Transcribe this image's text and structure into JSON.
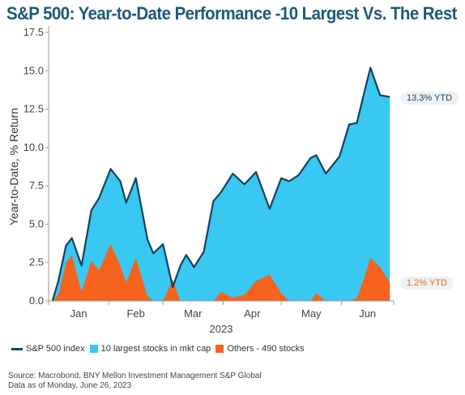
{
  "colors": {
    "title": "#1d5a7a",
    "index_line": "#14425e",
    "top10_fill": "#38c8f2",
    "others_fill": "#f5631e",
    "axis_text": "#444444"
  },
  "footer": {
    "source": "Source: Macrobond, BNY Mellon Investment Management S&P Global",
    "date_note": "Data as of Monday, June 26, 2023"
  },
  "annotations": {
    "index_ytd": "13.3% YTD",
    "others_ytd": "1.2% YTD"
  },
  "chart_data": {
    "type": "area",
    "title": "S&P 500: Year-to-Date Performance -10 Largest Vs. The Rest",
    "ylabel": "Year-to-Date, % Return",
    "xlabel": "2023",
    "ylim": [
      0,
      17.5
    ],
    "yticks": [
      "0.0",
      "2.5",
      "5.0",
      "7.5",
      "10.0",
      "12.5",
      "15.0",
      "17.5"
    ],
    "month_labels": [
      "Jan",
      "Feb",
      "Mar",
      "Apr",
      "May",
      "Jun"
    ],
    "grid": false,
    "legend_position": "bottom-left",
    "x": [
      "2023-01-03",
      "2023-01-06",
      "2023-01-10",
      "2023-01-13",
      "2023-01-18",
      "2023-01-23",
      "2023-01-27",
      "2023-02-02",
      "2023-02-07",
      "2023-02-10",
      "2023-02-15",
      "2023-02-21",
      "2023-02-24",
      "2023-03-01",
      "2023-03-06",
      "2023-03-10",
      "2023-03-13",
      "2023-03-17",
      "2023-03-22",
      "2023-03-27",
      "2023-03-31",
      "2023-04-06",
      "2023-04-12",
      "2023-04-18",
      "2023-04-25",
      "2023-05-01",
      "2023-05-05",
      "2023-05-10",
      "2023-05-16",
      "2023-05-19",
      "2023-05-24",
      "2023-05-31",
      "2023-06-05",
      "2023-06-09",
      "2023-06-13",
      "2023-06-16",
      "2023-06-21",
      "2023-06-26"
    ],
    "series": [
      {
        "name": "S&P 500 index",
        "values": [
          0.0,
          1.3,
          3.6,
          4.1,
          2.3,
          5.9,
          6.7,
          8.6,
          7.8,
          6.4,
          8.0,
          4.0,
          3.1,
          3.7,
          0.9,
          2.3,
          3.0,
          2.2,
          3.2,
          6.5,
          7.1,
          8.3,
          7.6,
          8.4,
          6.0,
          8.0,
          7.8,
          8.2,
          9.3,
          9.5,
          8.3,
          9.4,
          11.5,
          11.6,
          13.7,
          15.2,
          13.4,
          13.3
        ]
      },
      {
        "name": "10 largest stocks in mkt cap",
        "values": [
          0.0,
          1.3,
          3.6,
          4.1,
          2.3,
          5.9,
          6.7,
          8.6,
          7.8,
          6.4,
          8.0,
          4.0,
          3.1,
          3.7,
          0.9,
          2.3,
          3.0,
          2.2,
          3.2,
          6.5,
          7.1,
          8.3,
          7.6,
          8.4,
          6.0,
          8.0,
          7.8,
          8.2,
          9.3,
          9.5,
          8.3,
          9.4,
          11.5,
          11.6,
          13.7,
          15.2,
          13.4,
          13.3
        ]
      },
      {
        "name": "Others - 490 stocks",
        "values": [
          0.0,
          0.4,
          2.5,
          3.0,
          0.6,
          2.6,
          2.0,
          3.7,
          2.3,
          1.2,
          2.8,
          0.3,
          0.0,
          0.0,
          1.4,
          0.0,
          0.0,
          0.0,
          0.0,
          0.0,
          0.6,
          0.2,
          0.4,
          1.3,
          1.7,
          0.5,
          0.0,
          0.0,
          0.0,
          0.5,
          0.0,
          0.0,
          0.0,
          0.2,
          1.6,
          2.8,
          2.2,
          1.2
        ]
      }
    ]
  }
}
